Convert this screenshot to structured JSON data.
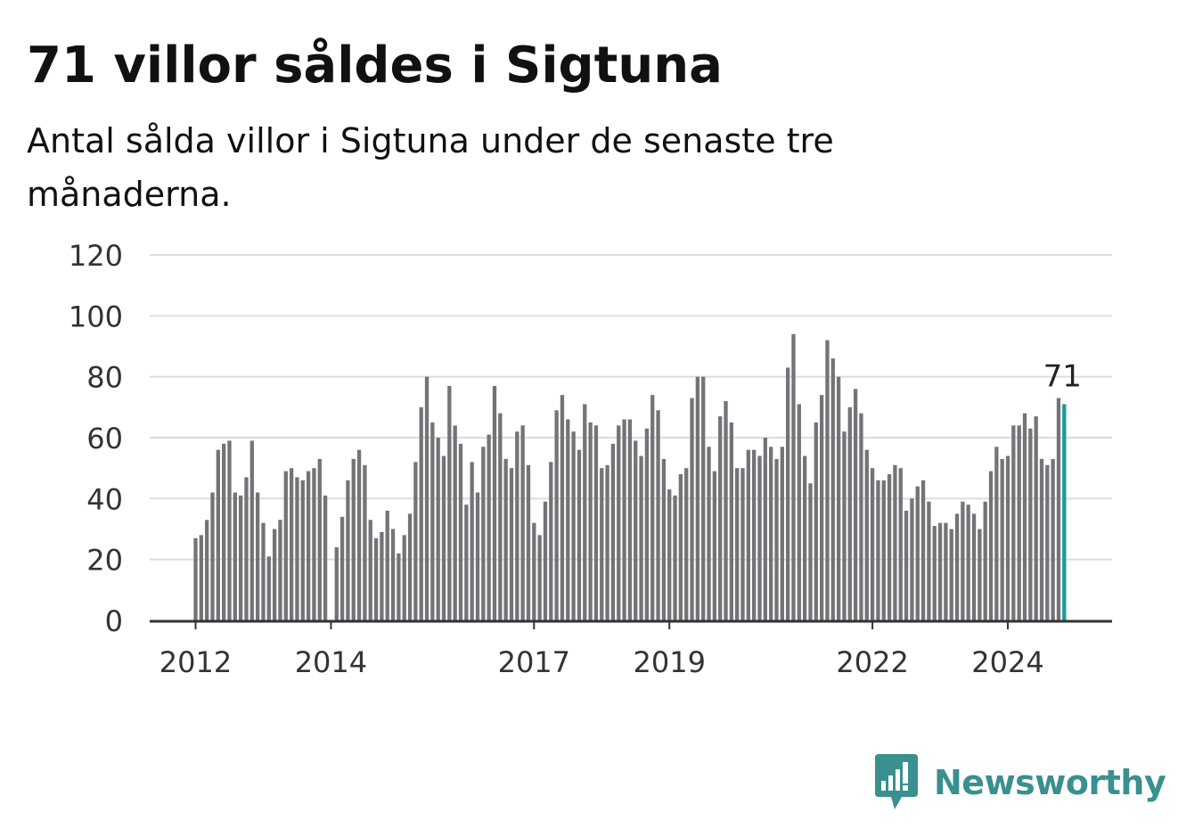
{
  "header": {
    "title": "71 villor såldes i Sigtuna",
    "subtitle": "Antal sålda villor i Sigtuna under de senaste tre månaderna."
  },
  "brand": {
    "name": "Newsworthy",
    "icon": "newsworthy-logo-icon"
  },
  "colors": {
    "bar": "#737378",
    "highlight": "#1b9a9a",
    "grid": "#dddddd",
    "axis": "#333333"
  },
  "chart_data": {
    "type": "bar",
    "title": "71 villor såldes i Sigtuna",
    "subtitle": "Antal sålda villor i Sigtuna under de senaste tre månaderna.",
    "xlabel": "",
    "ylabel": "",
    "ylim": [
      0,
      120
    ],
    "yticks": [
      0,
      20,
      40,
      60,
      80,
      100,
      120
    ],
    "xticks": [
      "2012",
      "2014",
      "2017",
      "2019",
      "2022",
      "2024"
    ],
    "grid": true,
    "series_start": "2012-01",
    "frequency": "monthly",
    "values": [
      27,
      28,
      33,
      42,
      56,
      58,
      59,
      42,
      41,
      47,
      59,
      42,
      32,
      21,
      30,
      33,
      49,
      50,
      47,
      46,
      49,
      50,
      53,
      41,
      null,
      24,
      34,
      46,
      53,
      56,
      51,
      33,
      27,
      29,
      36,
      30,
      22,
      28,
      35,
      52,
      70,
      80,
      65,
      60,
      54,
      77,
      64,
      58,
      38,
      52,
      42,
      57,
      61,
      77,
      68,
      53,
      50,
      62,
      64,
      51,
      32,
      28,
      39,
      52,
      69,
      74,
      66,
      62,
      56,
      71,
      65,
      64,
      50,
      51,
      58,
      64,
      66,
      66,
      59,
      54,
      63,
      74,
      69,
      53,
      43,
      41,
      48,
      50,
      73,
      80,
      80,
      57,
      49,
      67,
      72,
      65,
      50,
      50,
      56,
      56,
      54,
      60,
      57,
      53,
      57,
      83,
      94,
      71,
      54,
      45,
      65,
      74,
      92,
      86,
      80,
      62,
      70,
      76,
      68,
      56,
      50,
      46,
      46,
      48,
      51,
      50,
      36,
      40,
      44,
      46,
      39,
      31,
      32,
      32,
      30,
      35,
      39,
      38,
      35,
      30,
      39,
      49,
      57,
      53,
      54,
      64,
      64,
      68,
      63,
      67,
      53,
      51,
      53,
      73,
      71
    ],
    "highlight_label": "71"
  }
}
